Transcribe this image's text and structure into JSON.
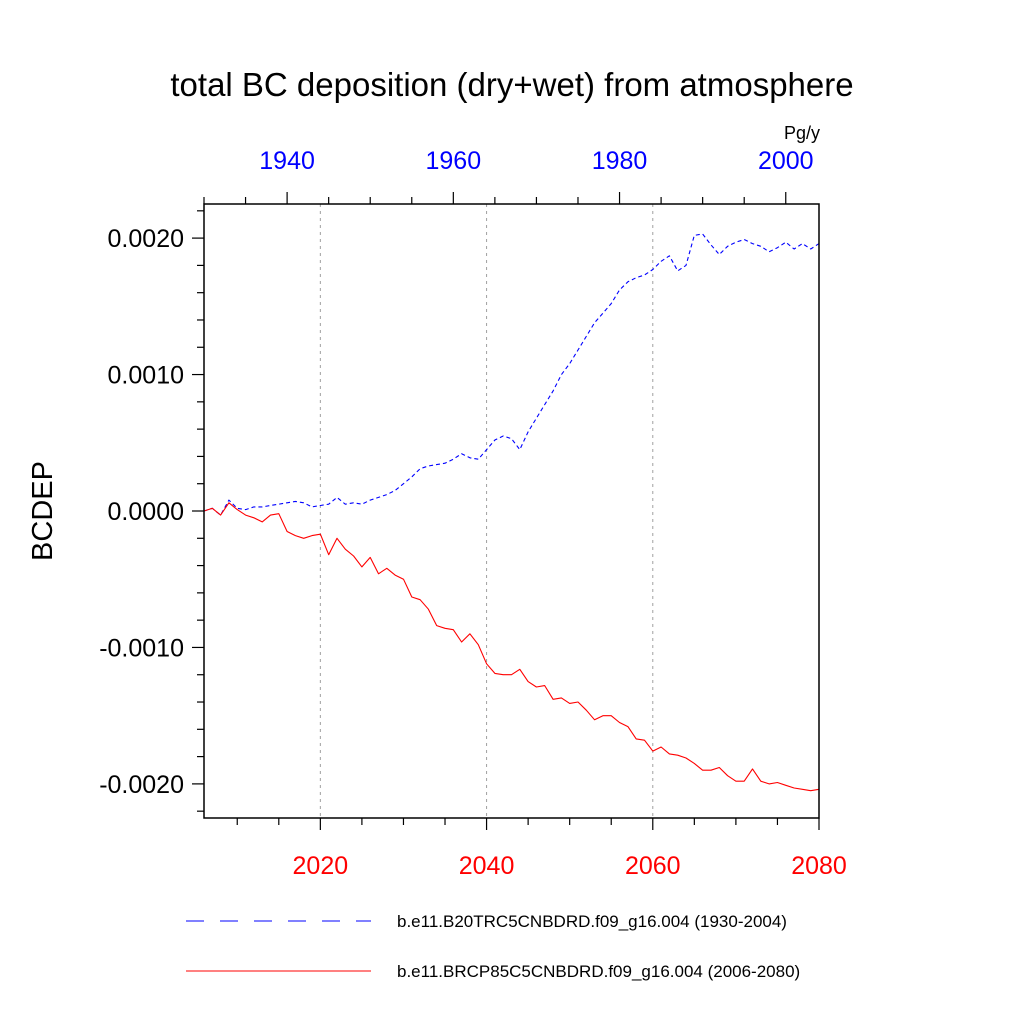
{
  "chart_data": {
    "type": "line",
    "title": "total BC deposition (dry+wet) from atmosphere",
    "ylabel": "BCDEP",
    "units": "Pg/y",
    "ylim": [
      -0.00225,
      0.00225
    ],
    "y_ticks": [
      -0.002,
      -0.001,
      0.0,
      0.001,
      0.002
    ],
    "y_tick_labels": [
      "-0.0020",
      "-0.0010",
      "0.0000",
      "0.0010",
      "0.0020"
    ],
    "top_axis": {
      "color": "#0000ff",
      "range": [
        1930,
        2004
      ],
      "ticks": [
        1940,
        1960,
        1980,
        2000
      ],
      "tick_labels": [
        "1940",
        "1960",
        "1980",
        "2000"
      ]
    },
    "bottom_axis": {
      "color": "#ff0000",
      "range": [
        2006,
        2080
      ],
      "ticks": [
        2020,
        2040,
        2060,
        2080
      ],
      "tick_labels": [
        "2020",
        "2040",
        "2060",
        "2080"
      ]
    },
    "grid": "vertical dotted at bottom-axis major ticks",
    "series": [
      {
        "name": "b.e11.B20TRC5CNBDRD.f09_g16.004 (1930-2004)",
        "axis": "top",
        "color": "#0000ff",
        "style": "dashed",
        "x": [
          1930,
          1931,
          1932,
          1933,
          1934,
          1935,
          1936,
          1937,
          1938,
          1939,
          1940,
          1941,
          1942,
          1943,
          1944,
          1945,
          1946,
          1947,
          1948,
          1949,
          1950,
          1951,
          1952,
          1953,
          1954,
          1955,
          1956,
          1957,
          1958,
          1959,
          1960,
          1961,
          1962,
          1963,
          1964,
          1965,
          1966,
          1967,
          1968,
          1969,
          1970,
          1971,
          1972,
          1973,
          1974,
          1975,
          1976,
          1977,
          1978,
          1979,
          1980,
          1981,
          1982,
          1983,
          1984,
          1985,
          1986,
          1987,
          1988,
          1989,
          1990,
          1991,
          1992,
          1993,
          1994,
          1995,
          1996,
          1997,
          1998,
          1999,
          2000,
          2001,
          2002,
          2003,
          2004
        ],
        "values": [
          0.0,
          2e-05,
          -3e-05,
          8e-05,
          2e-05,
          1e-05,
          3e-05,
          3e-05,
          4e-05,
          5e-05,
          6e-05,
          7e-05,
          6e-05,
          3e-05,
          4e-05,
          5e-05,
          0.0001,
          5e-05,
          6e-05,
          5e-05,
          8e-05,
          0.0001,
          0.00012,
          0.00015,
          0.0002,
          0.00025,
          0.00031,
          0.00033,
          0.00034,
          0.00035,
          0.00038,
          0.00042,
          0.00039,
          0.00038,
          0.00045,
          0.00052,
          0.00055,
          0.00053,
          0.00045,
          0.00058,
          0.00068,
          0.00078,
          0.00088,
          0.001,
          0.00108,
          0.00118,
          0.00128,
          0.00138,
          0.00145,
          0.00152,
          0.00162,
          0.00168,
          0.00171,
          0.00173,
          0.00177,
          0.00183,
          0.00187,
          0.00176,
          0.0018,
          0.00202,
          0.00203,
          0.00195,
          0.00188,
          0.00194,
          0.00197,
          0.00199,
          0.00196,
          0.00194,
          0.0019,
          0.00193,
          0.00197,
          0.00192,
          0.00196,
          0.00192,
          0.00196
        ]
      },
      {
        "name": "b.e11.BRCP85C5CNBDRD.f09_g16.004 (2006-2080)",
        "axis": "bottom",
        "color": "#ff0000",
        "style": "solid",
        "x": [
          2006,
          2007,
          2008,
          2009,
          2010,
          2011,
          2012,
          2013,
          2014,
          2015,
          2016,
          2017,
          2018,
          2019,
          2020,
          2021,
          2022,
          2023,
          2024,
          2025,
          2026,
          2027,
          2028,
          2029,
          2030,
          2031,
          2032,
          2033,
          2034,
          2035,
          2036,
          2037,
          2038,
          2039,
          2040,
          2041,
          2042,
          2043,
          2044,
          2045,
          2046,
          2047,
          2048,
          2049,
          2050,
          2051,
          2052,
          2053,
          2054,
          2055,
          2056,
          2057,
          2058,
          2059,
          2060,
          2061,
          2062,
          2063,
          2064,
          2065,
          2066,
          2067,
          2068,
          2069,
          2070,
          2071,
          2072,
          2073,
          2074,
          2075,
          2076,
          2077,
          2078,
          2079,
          2080
        ],
        "values": [
          0.0,
          2e-05,
          -3e-05,
          6e-05,
          1e-05,
          -3e-05,
          -5e-05,
          -8e-05,
          -3e-05,
          -2e-05,
          -0.00015,
          -0.00018,
          -0.0002,
          -0.00018,
          -0.00017,
          -0.00032,
          -0.0002,
          -0.00028,
          -0.00033,
          -0.00041,
          -0.00034,
          -0.00046,
          -0.00042,
          -0.00047,
          -0.0005,
          -0.00063,
          -0.00065,
          -0.00072,
          -0.00084,
          -0.00086,
          -0.00087,
          -0.00096,
          -0.0009,
          -0.00098,
          -0.00112,
          -0.00119,
          -0.0012,
          -0.0012,
          -0.00116,
          -0.00125,
          -0.00129,
          -0.00128,
          -0.00138,
          -0.00137,
          -0.00141,
          -0.0014,
          -0.00146,
          -0.00153,
          -0.0015,
          -0.0015,
          -0.00155,
          -0.00158,
          -0.00167,
          -0.00168,
          -0.00176,
          -0.00173,
          -0.00178,
          -0.00179,
          -0.00181,
          -0.00185,
          -0.0019,
          -0.0019,
          -0.00188,
          -0.00194,
          -0.00198,
          -0.00198,
          -0.00189,
          -0.00198,
          -0.002,
          -0.00199,
          -0.00201,
          -0.00203,
          -0.00204,
          -0.00205,
          -0.00204
        ]
      }
    ]
  }
}
